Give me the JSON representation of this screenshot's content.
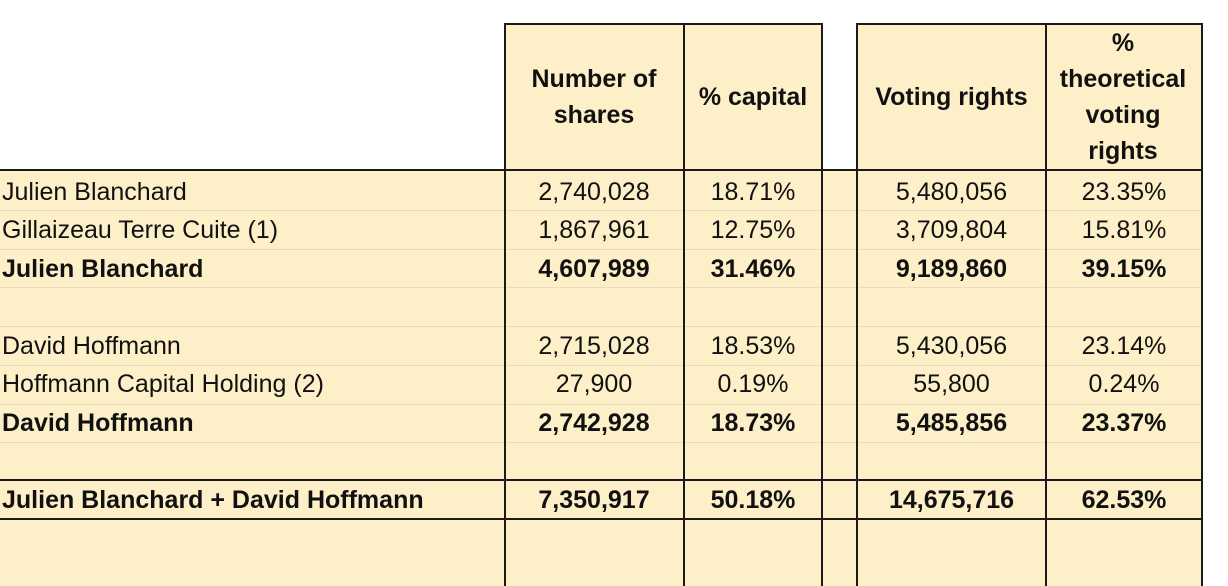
{
  "headers": {
    "number_of_shares": "Number of shares",
    "pct_capital": "% capital",
    "voting_rights": "Voting rights",
    "pct_theoretical_voting_rights": "% theoretical voting rights"
  },
  "rows": [
    {
      "label": "Julien Blanchard",
      "shares": "2,740,028",
      "capital": "18.71%",
      "voting": "5,480,056",
      "theoretical": "23.35%"
    },
    {
      "label": "Gillaizeau Terre Cuite (1)",
      "shares": "1,867,961",
      "capital": "12.75%",
      "voting": "3,709,804",
      "theoretical": "15.81%"
    },
    {
      "label": "Julien Blanchard",
      "shares": "4,607,989",
      "capital": "31.46%",
      "voting": "9,189,860",
      "theoretical": "39.15%"
    },
    {
      "label": "David Hoffmann",
      "shares": "2,715,028",
      "capital": "18.53%",
      "voting": "5,430,056",
      "theoretical": "23.14%"
    },
    {
      "label": "Hoffmann Capital Holding (2)",
      "shares": "27,900",
      "capital": "0.19%",
      "voting": "55,800",
      "theoretical": "0.24%"
    },
    {
      "label": "David Hoffmann",
      "shares": "2,742,928",
      "capital": "18.73%",
      "voting": "5,485,856",
      "theoretical": "23.37%"
    },
    {
      "label": "Julien Blanchard + David Hoffmann",
      "shares": "7,350,917",
      "capital": "50.18%",
      "voting": "14,675,716",
      "theoretical": "62.53%"
    }
  ]
}
